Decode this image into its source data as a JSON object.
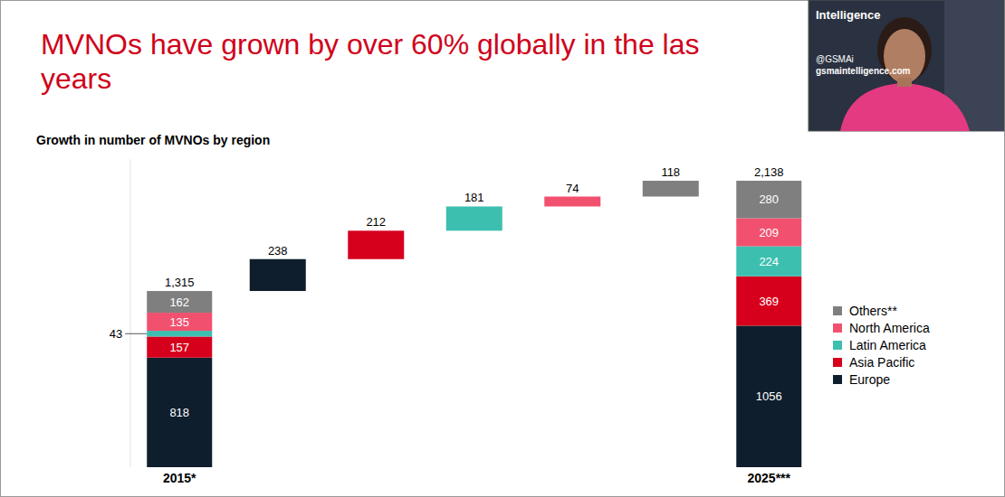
{
  "chart_data": {
    "type": "waterfall",
    "title": "MVNOs have grown by over 60% globally in the las\nyears",
    "subtitle": "Growth in number of MVNOs by region",
    "categories": [
      "2015*",
      null,
      null,
      null,
      null,
      null,
      "2025***"
    ],
    "series": [
      {
        "name": "Europe",
        "color": "#0f1e2d",
        "values": [
          818,
          238,
          null,
          null,
          null,
          null,
          1056
        ]
      },
      {
        "name": "Asia Pacific",
        "color": "#d6001c",
        "values": [
          157,
          null,
          212,
          null,
          null,
          null,
          369
        ]
      },
      {
        "name": "Latin America",
        "color": "#3dbfb0",
        "values": [
          43,
          null,
          null,
          181,
          null,
          null,
          224
        ]
      },
      {
        "name": "North America",
        "color": "#f2506f",
        "values": [
          135,
          null,
          null,
          null,
          74,
          null,
          209
        ]
      },
      {
        "name": "Others**",
        "color": "#7f7f7f",
        "values": [
          162,
          null,
          null,
          null,
          null,
          118,
          280
        ]
      }
    ],
    "totals": [
      1315,
      null,
      null,
      null,
      null,
      null,
      2138
    ],
    "total_labels": [
      "1,315",
      null,
      null,
      null,
      null,
      null,
      "2,138"
    ],
    "ylim": [
      0,
      2300
    ],
    "yticks": [],
    "tick_labels": false,
    "stacked": true,
    "data_labels": true,
    "legend": "right",
    "grid": false
  },
  "overlay": {
    "brand": "Intelligence",
    "handle": "@GSMAi",
    "site": "gsmaintelligence.com"
  }
}
